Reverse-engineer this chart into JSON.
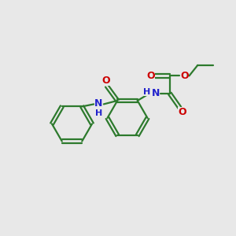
{
  "bg": "#e8e8e8",
  "gc": "#2d7a2d",
  "nc": "#2222cc",
  "oc": "#cc0000",
  "lw": 1.6,
  "figsize": [
    3.0,
    3.0
  ],
  "dpi": 100,
  "xlim": [
    0,
    10
  ],
  "ylim": [
    0,
    10
  ]
}
